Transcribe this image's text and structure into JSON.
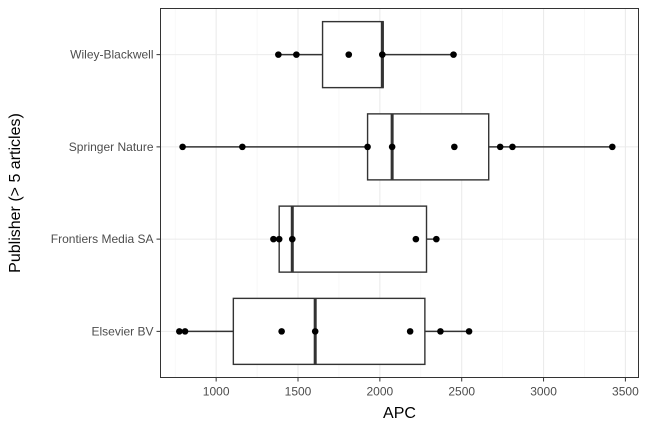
{
  "chart_data": {
    "type": "boxplot",
    "orientation": "horizontal",
    "title": "",
    "xlabel": "APC",
    "ylabel": "Publisher (> 5 articles)",
    "xlim": [
      660,
      3580
    ],
    "x_ticks": [
      1000,
      1500,
      2000,
      2500,
      3000,
      3500
    ],
    "x_tick_labels": [
      "1000",
      "1500",
      "2000",
      "2500",
      "3000",
      "3500"
    ],
    "grid": true,
    "categories": [
      "Wiley-Blackwell",
      "Springer Nature",
      "Frontiers Media SA",
      "Elsevier BV"
    ],
    "boxes": [
      {
        "category": "Wiley-Blackwell",
        "whisker_low": 1380,
        "q1": 1650,
        "median": 2015,
        "q3": 2020,
        "whisker_high": 2450
      },
      {
        "category": "Springer Nature",
        "whisker_low": 795,
        "q1": 1925,
        "median": 2075,
        "q3": 2665,
        "whisker_high": 3420
      },
      {
        "category": "Frontiers Media SA",
        "whisker_low": 1350,
        "q1": 1385,
        "median": 1465,
        "q3": 2285,
        "whisker_high": 2345
      },
      {
        "category": "Elsevier BV",
        "whisker_low": 775,
        "q1": 1105,
        "median": 1605,
        "q3": 2275,
        "whisker_high": 2545
      }
    ],
    "points": [
      {
        "category": "Wiley-Blackwell",
        "values": [
          1380,
          1490,
          1810,
          2015,
          2450
        ]
      },
      {
        "category": "Springer Nature",
        "values": [
          795,
          1160,
          1925,
          2075,
          2455,
          2735,
          2810,
          3420
        ]
      },
      {
        "category": "Frontiers Media SA",
        "values": [
          1350,
          1385,
          1465,
          2220,
          2345
        ]
      },
      {
        "category": "Elsevier BV",
        "values": [
          775,
          810,
          1400,
          1605,
          2185,
          2370,
          2545
        ]
      }
    ],
    "colors": {
      "background": "#ffffff",
      "grid_major": "#ebebeb",
      "grid_minor": "#f4f4f4",
      "box_stroke": "#333333",
      "point_fill": "#000000",
      "panel_border": "#333333",
      "tick_text": "#4d4d4d"
    }
  }
}
